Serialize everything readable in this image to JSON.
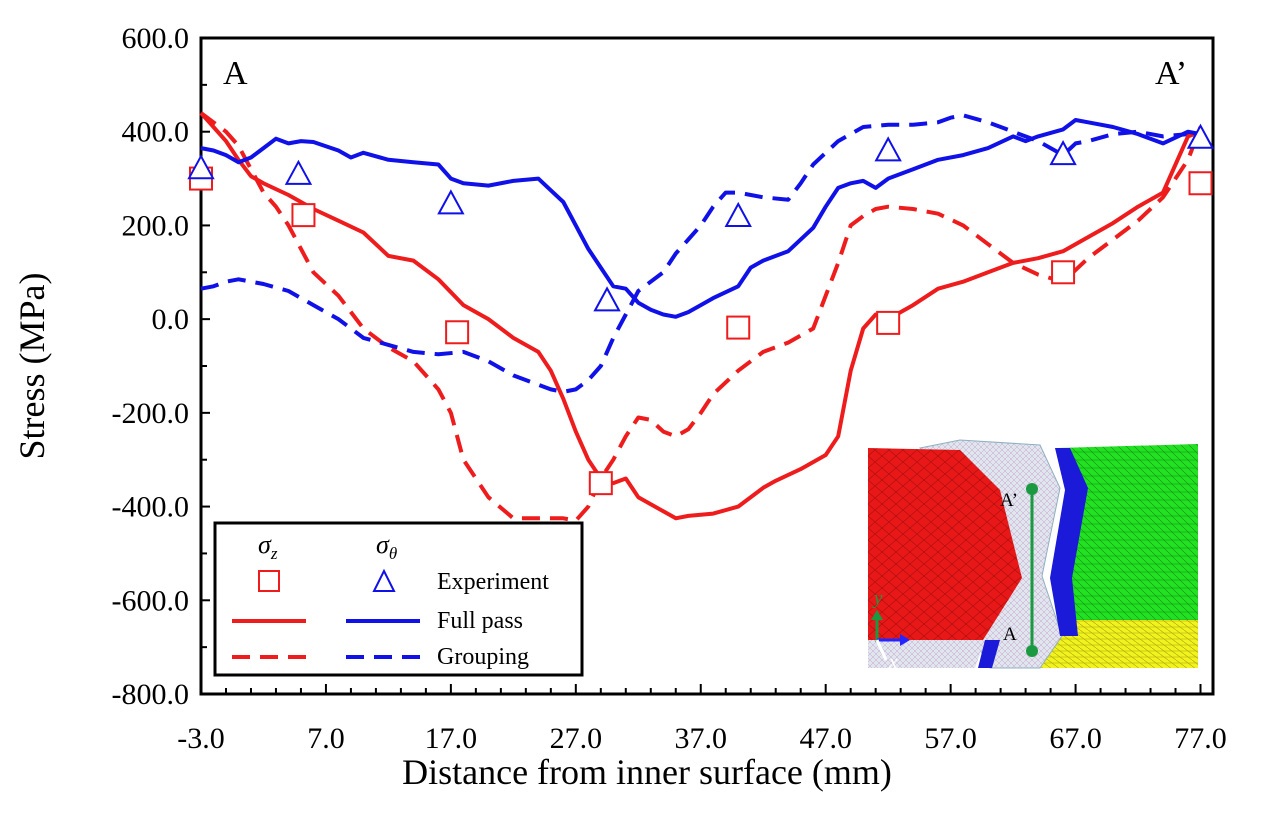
{
  "chart_data": {
    "type": "line",
    "xlabel": "Distance from inner surface (mm)",
    "ylabel": "Stress (MPa)",
    "xlim": [
      -3,
      78
    ],
    "ylim": [
      -800,
      600
    ],
    "xticks": [
      "-3.0",
      "7.0",
      "17.0",
      "27.0",
      "37.0",
      "47.0",
      "57.0",
      "67.0",
      "77.0"
    ],
    "yticks": [
      "600.0",
      "400.0",
      "200.0",
      "0.0",
      "-200.0",
      "-400.0",
      "-600.0",
      "-800.0"
    ],
    "corner_labels": {
      "left": "A",
      "right": "A’"
    },
    "grid": false,
    "legend_position": "bottom-left",
    "legend": {
      "col_sigma_z": "σ",
      "col_sigma_z_sub": "z",
      "col_sigma_theta": "σ",
      "col_sigma_theta_sub": "θ",
      "rows": [
        "Experiment",
        "Full pass",
        "Grouping"
      ]
    },
    "colors": {
      "sigma_z": "#ee1c1c",
      "sigma_theta": "#1010e8"
    },
    "series": [
      {
        "component": "sigma_z",
        "kind": "experiment",
        "marker": "square",
        "x": [
          -3.0,
          5.2,
          17.5,
          29.0,
          40.0,
          52.0,
          66.0,
          77.0
        ],
        "y": [
          300,
          222,
          -28,
          -350,
          -18,
          -8,
          100,
          290
        ]
      },
      {
        "component": "sigma_theta",
        "kind": "experiment",
        "marker": "triangle",
        "x": [
          -3.0,
          4.8,
          17.0,
          29.5,
          40.0,
          52.0,
          66.0,
          77.0
        ],
        "y": [
          320,
          308,
          245,
          38,
          218,
          358,
          350,
          385
        ]
      },
      {
        "component": "sigma_z",
        "kind": "full_pass",
        "line": "solid",
        "x": [
          -3.0,
          -2.0,
          -1.0,
          0.0,
          1.0,
          2.0,
          4.0,
          6.0,
          8.0,
          10.0,
          11.0,
          12.0,
          14.0,
          16.0,
          18.0,
          20.0,
          22.0,
          24.0,
          25.0,
          26.0,
          27.0,
          28.0,
          29.0,
          30.0,
          31.0,
          32.0,
          34.0,
          35.0,
          36.0,
          38.0,
          40.0,
          42.0,
          43.0,
          45.0,
          47.0,
          48.0,
          49.0,
          50.0,
          51.0,
          52.0,
          54.0,
          56.0,
          58.0,
          60.0,
          62.0,
          64.0,
          66.0,
          68.0,
          70.0,
          72.0,
          74.0,
          75.0,
          76.0,
          77.0
        ],
        "y": [
          440,
          410,
          380,
          340,
          305,
          290,
          265,
          235,
          210,
          185,
          160,
          135,
          125,
          85,
          30,
          0,
          -40,
          -70,
          -110,
          -170,
          -240,
          -300,
          -340,
          -350,
          -340,
          -380,
          -410,
          -425,
          -420,
          -415,
          -400,
          -360,
          -345,
          -320,
          -290,
          -250,
          -110,
          -20,
          10,
          0,
          30,
          65,
          80,
          100,
          120,
          130,
          145,
          175,
          205,
          240,
          270,
          330,
          390,
          400
        ]
      },
      {
        "component": "sigma_theta",
        "kind": "full_pass",
        "line": "solid",
        "x": [
          -3.0,
          -2.0,
          -1.0,
          0.0,
          1.0,
          2.0,
          3.0,
          4.0,
          5.0,
          6.0,
          8.0,
          9.0,
          10.0,
          12.0,
          14.0,
          16.0,
          17.0,
          18.0,
          20.0,
          22.0,
          24.0,
          25.0,
          26.0,
          27.0,
          28.0,
          29.0,
          30.0,
          31.0,
          32.0,
          33.0,
          34.0,
          35.0,
          36.0,
          37.0,
          38.0,
          40.0,
          41.0,
          42.0,
          44.0,
          46.0,
          47.0,
          48.0,
          49.0,
          50.0,
          51.0,
          52.0,
          54.0,
          56.0,
          58.0,
          60.0,
          62.0,
          63.0,
          64.0,
          66.0,
          67.0,
          68.0,
          70.0,
          72.0,
          74.0,
          76.0,
          77.0
        ],
        "y": [
          365,
          360,
          350,
          335,
          345,
          365,
          385,
          375,
          380,
          378,
          360,
          345,
          355,
          340,
          335,
          330,
          300,
          290,
          285,
          295,
          300,
          275,
          250,
          200,
          150,
          110,
          70,
          65,
          35,
          20,
          10,
          5,
          15,
          30,
          45,
          70,
          110,
          125,
          145,
          195,
          240,
          280,
          290,
          295,
          280,
          300,
          320,
          340,
          350,
          365,
          390,
          380,
          390,
          405,
          425,
          420,
          410,
          395,
          375,
          400,
          395
        ]
      },
      {
        "component": "sigma_z",
        "kind": "grouping",
        "line": "dashed",
        "x": [
          -3.0,
          -2.0,
          -1.0,
          0.0,
          1.0,
          2.0,
          3.0,
          4.0,
          5.0,
          6.0,
          8.0,
          10.0,
          12.0,
          14.0,
          16.0,
          17.0,
          18.0,
          20.0,
          22.0,
          24.0,
          26.0,
          27.0,
          28.0,
          29.0,
          30.0,
          31.0,
          32.0,
          33.0,
          34.0,
          35.0,
          36.0,
          37.0,
          38.0,
          40.0,
          42.0,
          44.0,
          46.0,
          47.0,
          48.0,
          49.0,
          50.0,
          51.0,
          52.0,
          54.0,
          56.0,
          58.0,
          60.0,
          62.0,
          64.0,
          66.0,
          68.0,
          70.0,
          72.0,
          74.0,
          76.0,
          77.0
        ],
        "y": [
          440,
          420,
          400,
          370,
          320,
          270,
          240,
          200,
          150,
          100,
          50,
          -20,
          -60,
          -90,
          -150,
          -200,
          -300,
          -380,
          -425,
          -425,
          -425,
          -430,
          -400,
          -340,
          -300,
          -250,
          -210,
          -215,
          -240,
          -250,
          -235,
          -200,
          -160,
          -110,
          -70,
          -50,
          -20,
          50,
          120,
          200,
          220,
          235,
          240,
          235,
          225,
          200,
          160,
          120,
          95,
          80,
          130,
          170,
          210,
          260,
          340,
          410
        ]
      },
      {
        "component": "sigma_theta",
        "kind": "grouping",
        "line": "dashed",
        "x": [
          -3.0,
          -2.0,
          -1.0,
          0.0,
          2.0,
          4.0,
          6.0,
          8.0,
          10.0,
          12.0,
          14.0,
          16.0,
          18.0,
          20.0,
          22.0,
          24.0,
          25.0,
          26.0,
          27.0,
          28.0,
          29.0,
          30.0,
          31.0,
          32.0,
          34.0,
          35.0,
          36.0,
          37.0,
          38.0,
          39.0,
          40.0,
          42.0,
          44.0,
          45.0,
          46.0,
          48.0,
          50.0,
          52.0,
          54.0,
          56.0,
          57.0,
          58.0,
          60.0,
          62.0,
          64.0,
          66.0,
          67.0,
          68.0,
          70.0,
          72.0,
          74.0,
          76.0,
          77.0
        ],
        "y": [
          65,
          70,
          80,
          85,
          75,
          60,
          30,
          0,
          -40,
          -55,
          -70,
          -75,
          -70,
          -90,
          -120,
          -140,
          -150,
          -155,
          -150,
          -130,
          -100,
          -40,
          10,
          60,
          100,
          140,
          170,
          200,
          240,
          270,
          270,
          260,
          255,
          290,
          330,
          380,
          410,
          415,
          415,
          420,
          430,
          435,
          420,
          400,
          380,
          350,
          375,
          380,
          395,
          400,
          390,
          395,
          400
        ]
      }
    ]
  },
  "inset": {
    "label_top": "A’",
    "label_bottom": "A",
    "axis_y": "y",
    "axis_x": "x"
  }
}
